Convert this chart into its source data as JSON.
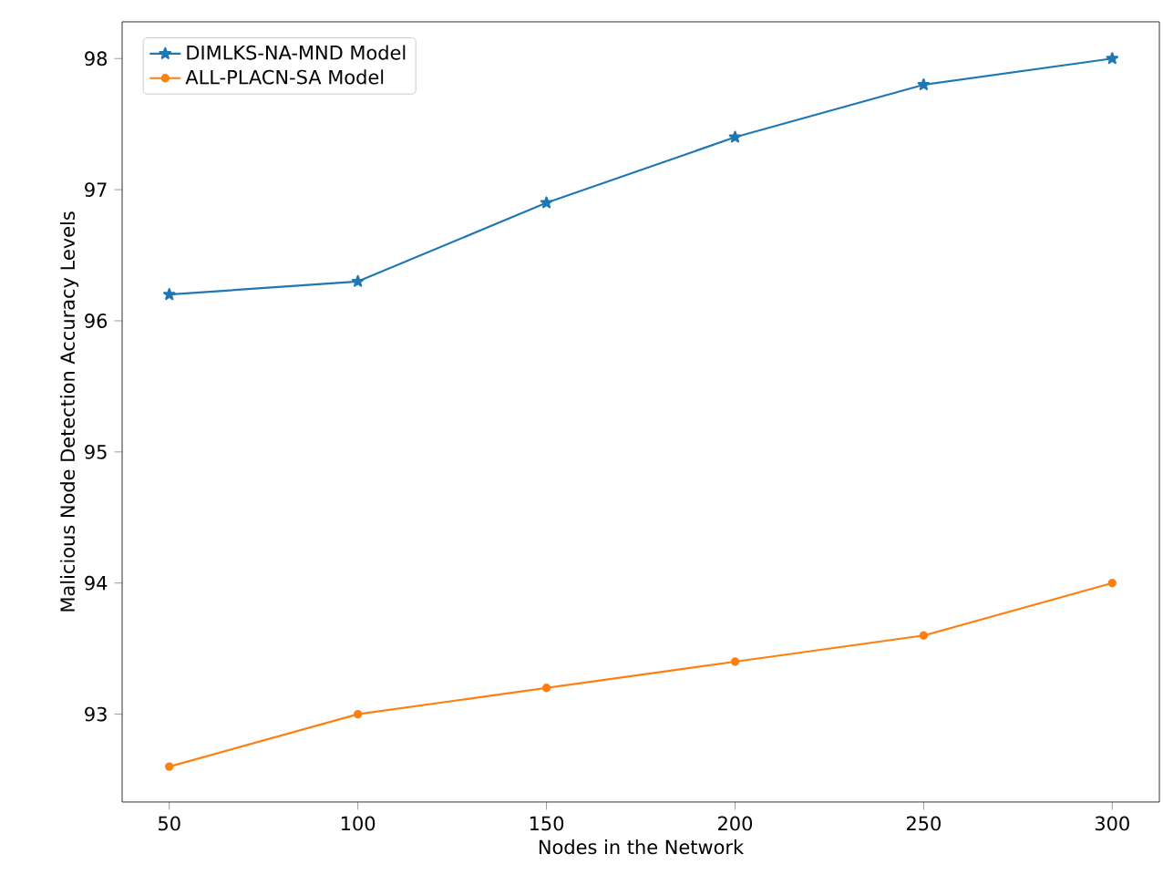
{
  "chart_data": {
    "type": "line",
    "xlabel": "Nodes in the Network",
    "ylabel": "Malicious Node Detection Accuracy Levels",
    "x": [
      50,
      100,
      150,
      200,
      250,
      300
    ],
    "series": [
      {
        "name": "DIMLKS-NA-MND Model",
        "color": "#1f77b4",
        "marker": "star",
        "values": [
          96.2,
          96.3,
          96.9,
          97.4,
          97.8,
          98.0
        ]
      },
      {
        "name": "ALL-PLACN-SA Model",
        "color": "#ff7f0e",
        "marker": "circle",
        "values": [
          92.6,
          93.0,
          93.2,
          93.4,
          93.6,
          94.0
        ]
      }
    ],
    "xlim": [
      37.5,
      312.5
    ],
    "ylim": [
      92.33,
      98.28
    ],
    "xticks": [
      50,
      100,
      150,
      200,
      250,
      300
    ],
    "yticks": [
      93,
      94,
      95,
      96,
      97,
      98
    ],
    "legend": "top left",
    "grid": false,
    "line_style": "solid"
  }
}
